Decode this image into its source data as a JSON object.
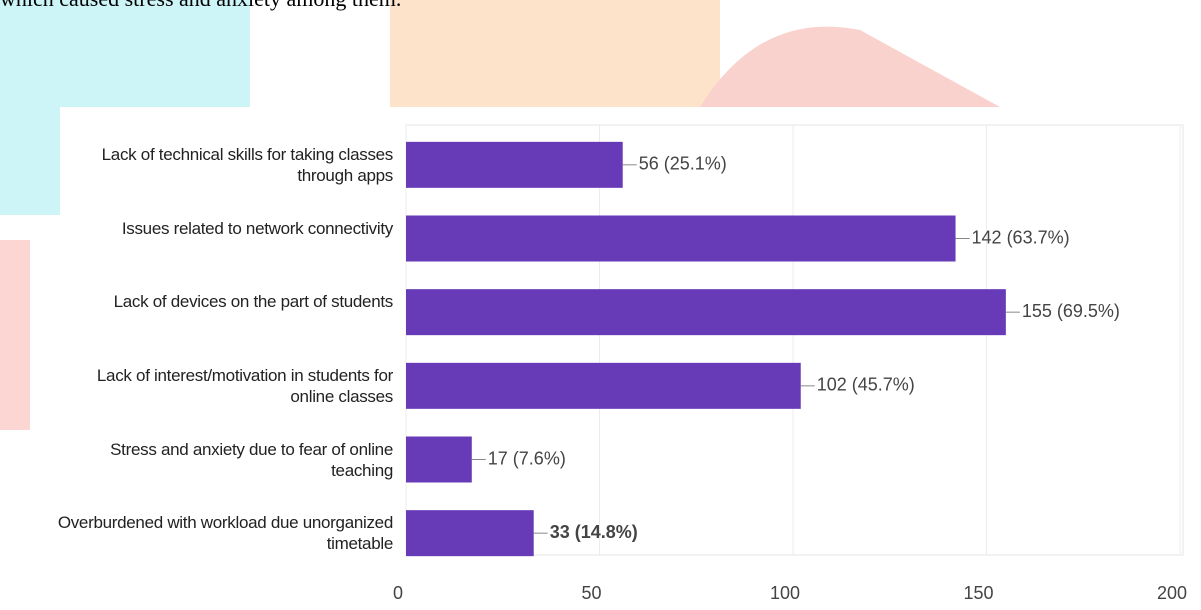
{
  "page_text": "which caused stress and anxiety among them.",
  "chart_data": {
    "type": "hbar",
    "categories": [
      "Lack of technical skills for taking classes through apps",
      "Issues related to network connectivity",
      "Lack of devices on the part of students",
      "Lack of interest/motivation in students for online classes",
      "Stress and anxiety due to fear of online teaching",
      "Overburdened with workload due unorganized timetable"
    ],
    "values": [
      56,
      142,
      155,
      102,
      17,
      33
    ],
    "value_labels": [
      "56 (25.1%)",
      "142 (63.7%)",
      "155 (69.5%)",
      "102 (45.7%)",
      "17 (7.6%)",
      "33 (14.8%)"
    ],
    "color": "#673ab7",
    "xlim": [
      0,
      200
    ],
    "xticks": [
      0,
      50,
      100,
      150,
      200
    ],
    "grid": true
  }
}
